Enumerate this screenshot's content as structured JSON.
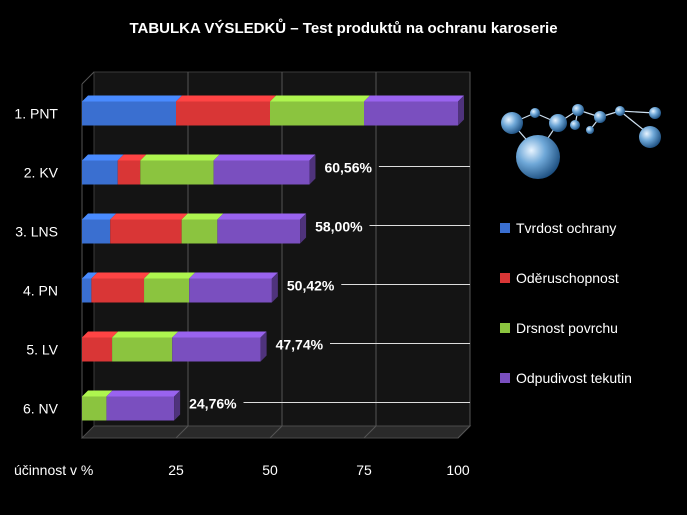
{
  "title": "TABULKA VÝSLEDKŮ – Test produktů na ochranu karoserie",
  "colors": {
    "background": "#000000",
    "blue": "#3a6fd0",
    "red": "#d93636",
    "green": "#8bc43f",
    "purple": "#7a4fbf",
    "text": "#ffffff"
  },
  "chart_data": {
    "type": "bar",
    "orientation": "horizontal",
    "stacked": true,
    "title": "TABULKA VÝSLEDKŮ – Test produktů na ochranu karoserie",
    "xlabel": "účinnost v %",
    "xlim": [
      0,
      100
    ],
    "xticks": [
      "25",
      "50",
      "75",
      "100"
    ],
    "grid": true,
    "legend_position": "right",
    "categories": [
      "1. PNT",
      "2. KV",
      "3. LNS",
      "4. PN",
      "5. LV",
      "6. NV"
    ],
    "series": [
      {
        "name": "Tvrdost ochrany",
        "color": "#3a6fd0",
        "values": [
          25,
          9.5,
          7.5,
          2.5,
          0,
          0
        ]
      },
      {
        "name": "Oděruschopnost",
        "color": "#d93636",
        "values": [
          25,
          6,
          19,
          14,
          8,
          0
        ]
      },
      {
        "name": "Drsnost povrchu",
        "color": "#8bc43f",
        "values": [
          25,
          19.5,
          9.5,
          12,
          16,
          6.5
        ]
      },
      {
        "name": "Odpudivost tekutin",
        "color": "#7a4fbf",
        "values": [
          25,
          25.5,
          22,
          22,
          23.5,
          18
        ]
      }
    ],
    "value_labels": [
      "",
      "60,56%",
      "58,00%",
      "50,42%",
      "47,74%",
      "24,76%"
    ]
  }
}
